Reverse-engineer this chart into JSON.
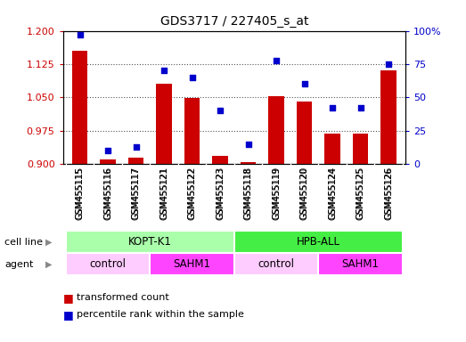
{
  "title": "GDS3717 / 227405_s_at",
  "samples": [
    "GSM455115",
    "GSM455116",
    "GSM455117",
    "GSM455121",
    "GSM455122",
    "GSM455123",
    "GSM455118",
    "GSM455119",
    "GSM455120",
    "GSM455124",
    "GSM455125",
    "GSM455126"
  ],
  "transformed_count": [
    1.155,
    0.91,
    0.915,
    1.08,
    1.048,
    0.918,
    0.905,
    1.052,
    1.04,
    0.968,
    0.968,
    1.11
  ],
  "percentile_rank": [
    97,
    10,
    13,
    70,
    65,
    40,
    15,
    78,
    60,
    42,
    42,
    75
  ],
  "ylim_left": [
    0.9,
    1.2
  ],
  "ylim_right": [
    0,
    100
  ],
  "yticks_left": [
    0.9,
    0.975,
    1.05,
    1.125,
    1.2
  ],
  "yticks_right": [
    0,
    25,
    50,
    75,
    100
  ],
  "yticklabels_right": [
    "0",
    "25",
    "50",
    "75",
    "100%"
  ],
  "bar_color": "#cc0000",
  "scatter_color": "#0000cc",
  "cell_line_groups": [
    {
      "label": "KOPT-K1",
      "start": 0,
      "end": 6,
      "color": "#aaffaa"
    },
    {
      "label": "HPB-ALL",
      "start": 6,
      "end": 12,
      "color": "#44ee44"
    }
  ],
  "agent_groups": [
    {
      "label": "control",
      "start": 0,
      "end": 3,
      "color": "#ffccff"
    },
    {
      "label": "SAHM1",
      "start": 3,
      "end": 6,
      "color": "#ff44ff"
    },
    {
      "label": "control",
      "start": 6,
      "end": 9,
      "color": "#ffccff"
    },
    {
      "label": "SAHM1",
      "start": 9,
      "end": 12,
      "color": "#ff44ff"
    }
  ],
  "cell_line_label": "cell line",
  "agent_label": "agent",
  "legend_items": [
    {
      "label": "transformed count",
      "color": "#cc0000"
    },
    {
      "label": "percentile rank within the sample",
      "color": "#0000cc"
    }
  ],
  "grid_color": "#555555",
  "plot_bg": "#ffffff",
  "fig_bg": "#ffffff",
  "tick_color_left": "#cc0000",
  "tick_color_right": "#0000cc",
  "xtick_bg": "#d8d8d8",
  "border_color": "#000000"
}
